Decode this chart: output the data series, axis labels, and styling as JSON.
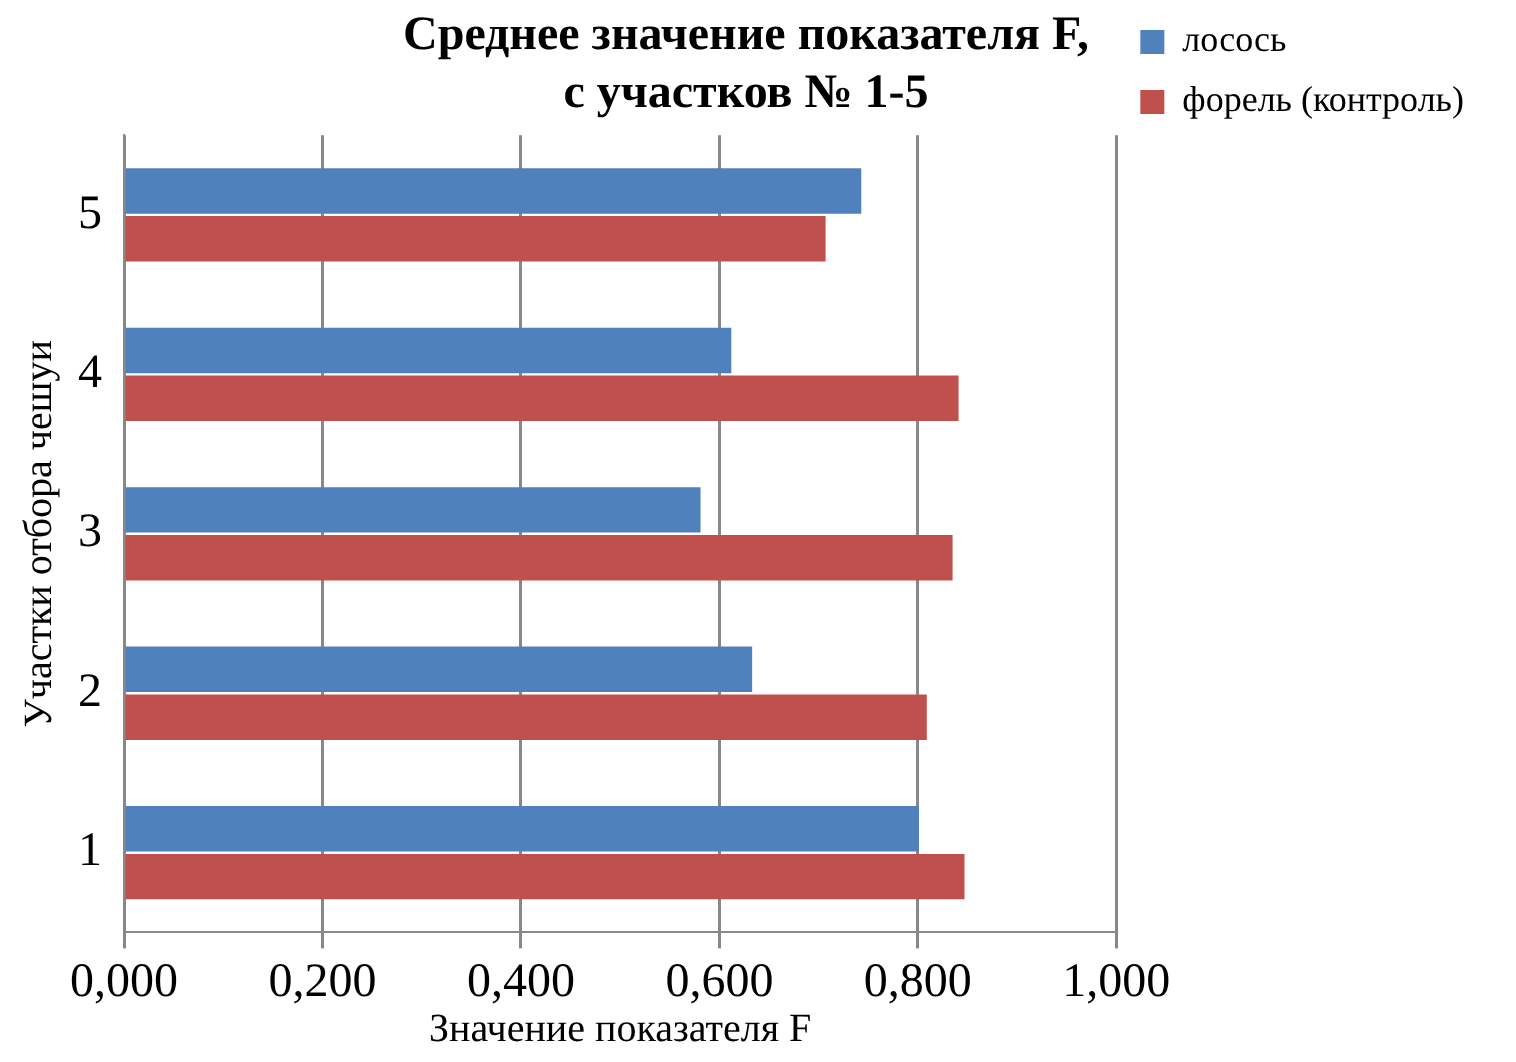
{
  "chart_data": {
    "type": "bar",
    "orientation": "horizontal",
    "title": [
      "Среднее значение показателя F,",
      "с участков № 1-5"
    ],
    "xlabel": "Значение показателя F",
    "ylabel": "Участки отбора чешуи",
    "categories": [
      "5",
      "4",
      "3",
      "2",
      "1"
    ],
    "series": [
      {
        "name": "лосось",
        "color": "#4f81bd",
        "values": [
          0.743,
          0.612,
          0.581,
          0.633,
          0.801
        ]
      },
      {
        "name": "форель (контроль)",
        "color": "#c0504d",
        "values": [
          0.707,
          0.841,
          0.835,
          0.809,
          0.847
        ]
      }
    ],
    "xlim": [
      0,
      1
    ],
    "xticks": [
      {
        "value": 0,
        "label": "0,000"
      },
      {
        "value": 0.2,
        "label": "0,200"
      },
      {
        "value": 0.4,
        "label": "0,400"
      },
      {
        "value": 0.6,
        "label": "0,600"
      },
      {
        "value": 0.8,
        "label": "0,800"
      },
      {
        "value": 1,
        "label": "1,000"
      }
    ],
    "grid": "x",
    "legend": "right"
  }
}
